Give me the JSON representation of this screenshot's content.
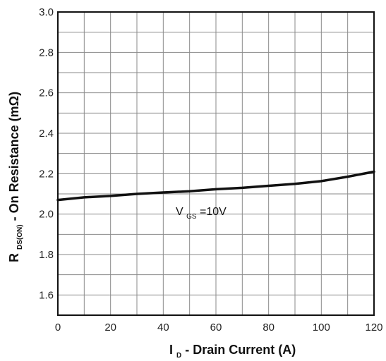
{
  "chart_data": {
    "type": "line",
    "title": "",
    "xlabel": {
      "main": "I",
      "sub": "D",
      "rest": " - Drain Current (A)"
    },
    "ylabel": {
      "main": "R",
      "sub": "DS(ON)",
      "rest": " - On Resistance (mΩ)"
    },
    "xlim": [
      0,
      120
    ],
    "ylim": [
      1.5,
      3.0
    ],
    "xticks": [
      0,
      20,
      40,
      60,
      80,
      100,
      120
    ],
    "yticks": [
      "1.6",
      "1.8",
      "2.0",
      "2.2",
      "2.4",
      "2.6",
      "2.8",
      "3.0"
    ],
    "grid": true,
    "series": [
      {
        "x": [
          0,
          10,
          20,
          30,
          40,
          50,
          60,
          70,
          80,
          90,
          100,
          110,
          120
        ],
        "y": [
          2.07,
          2.083,
          2.09,
          2.1,
          2.107,
          2.113,
          2.123,
          2.13,
          2.14,
          2.15,
          2.163,
          2.185,
          2.21
        ]
      }
    ],
    "annotation": {
      "main": "V",
      "sub": "GS",
      "rest": "=10V"
    }
  },
  "colors": {
    "line": "#111111",
    "grid": "#8a8a8a",
    "frame": "#111111"
  }
}
